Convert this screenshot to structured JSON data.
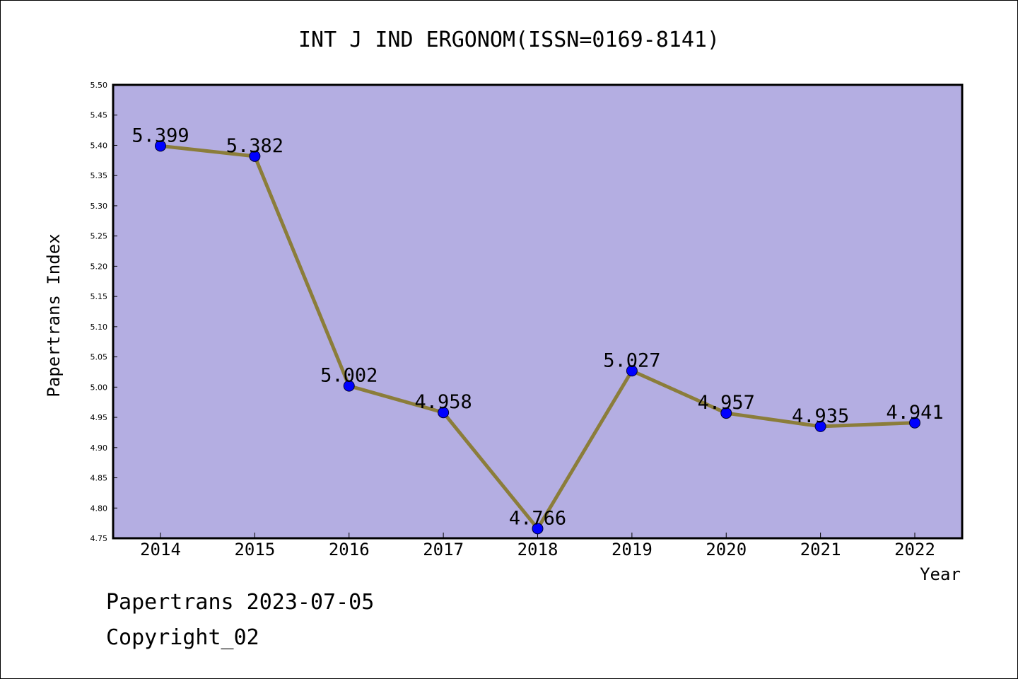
{
  "chart_data": {
    "type": "line",
    "title": "INT J IND ERGONOM(ISSN=0169-8141)",
    "xlabel": "Year",
    "ylabel": "Papertrans Index",
    "x": [
      "2014",
      "2015",
      "2016",
      "2017",
      "2018",
      "2019",
      "2020",
      "2021",
      "2022"
    ],
    "values": [
      5.399,
      5.382,
      5.002,
      4.958,
      4.766,
      5.027,
      4.957,
      4.935,
      4.941
    ],
    "labels": [
      "5.399",
      "5.382",
      "5.002",
      "4.958",
      "4.766",
      "5.027",
      "4.957",
      "4.935",
      "4.941"
    ],
    "ylim": [
      4.75,
      5.5
    ],
    "yticks": [
      "4.75",
      "4.80",
      "4.85",
      "4.90",
      "4.95",
      "5.00",
      "5.05",
      "5.10",
      "5.15",
      "5.20",
      "5.25",
      "5.30",
      "5.35",
      "5.40",
      "5.45",
      "5.50"
    ],
    "grid": false,
    "colors": {
      "plot_background": "#b4aee2",
      "line": "#8b7d3a",
      "marker": "#0000ff"
    }
  },
  "footer": {
    "line1": "Papertrans 2023-07-05",
    "line2": "Copyright_02"
  }
}
